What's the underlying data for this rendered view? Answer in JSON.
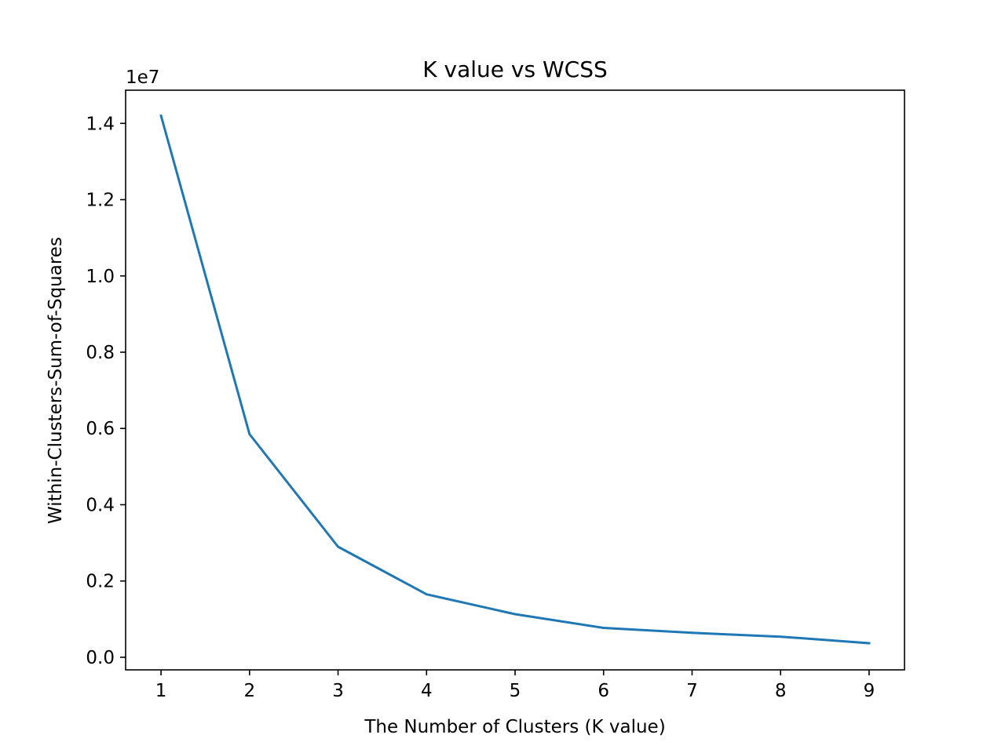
{
  "chart_data": {
    "type": "line",
    "title": "K value vs WCSS",
    "xlabel": "The Number of Clusters (K value)",
    "ylabel": "Within-Clusters-Sum-of-Squares",
    "y_offset_label": "1e7",
    "x_ticks": [
      "1",
      "2",
      "3",
      "4",
      "5",
      "6",
      "7",
      "8",
      "9"
    ],
    "y_ticks": [
      "0.0",
      "0.2",
      "0.4",
      "0.6",
      "0.8",
      "1.0",
      "1.2",
      "1.4"
    ],
    "xlim": [
      0.6,
      9.4
    ],
    "ylim": [
      -0.033,
      1.487
    ],
    "grid": false,
    "legend": "none",
    "series": [
      {
        "color": "#1f77b4",
        "x": [
          1,
          2,
          3,
          4,
          5,
          6,
          7,
          8,
          9
        ],
        "y": [
          1.42,
          0.585,
          0.29,
          0.165,
          0.113,
          0.077,
          0.064,
          0.054,
          0.037
        ]
      }
    ]
  }
}
